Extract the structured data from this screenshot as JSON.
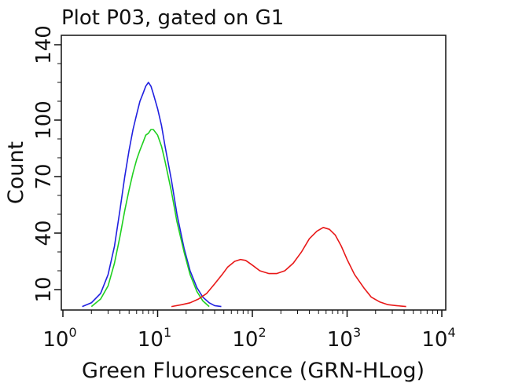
{
  "chart_data": {
    "type": "line",
    "title": "Plot P03, gated on G1",
    "xlabel": "Green Fluorescence (GRN-HLog)",
    "ylabel": "Count",
    "xscale": "log",
    "xlim": [
      1,
      10000
    ],
    "ylim": [
      0,
      145
    ],
    "grid": false,
    "x_ticks": [
      {
        "base": "10",
        "exp": "0",
        "value": 1
      },
      {
        "base": "10",
        "exp": "1",
        "value": 10
      },
      {
        "base": "10",
        "exp": "2",
        "value": 100
      },
      {
        "base": "10",
        "exp": "3",
        "value": 1000
      },
      {
        "base": "10",
        "exp": "4",
        "value": 10000
      }
    ],
    "y_ticks": [
      {
        "label": "10",
        "value": 10
      },
      {
        "label": "40",
        "value": 40
      },
      {
        "label": "70",
        "value": 70
      },
      {
        "label": "100",
        "value": 100
      },
      {
        "label": "140",
        "value": 140
      }
    ],
    "series": [
      {
        "color": "#2020e0",
        "x": [
          1.6,
          2.0,
          2.5,
          3.0,
          3.5,
          4.0,
          4.5,
          5.0,
          5.5,
          6.0,
          6.5,
          7.0,
          7.5,
          8.0,
          8.5,
          9.0,
          10,
          11,
          12,
          14,
          16,
          19,
          22,
          26,
          30,
          35,
          40,
          47
        ],
        "y": [
          1,
          3,
          8,
          18,
          33,
          52,
          70,
          84,
          95,
          103,
          110,
          114,
          118,
          120,
          118,
          114,
          106,
          97,
          86,
          68,
          50,
          32,
          20,
          11,
          6,
          3,
          1.5,
          1
        ]
      },
      {
        "color": "#20d020",
        "x": [
          2.0,
          2.5,
          3.0,
          3.5,
          4.0,
          4.5,
          5.0,
          5.5,
          6.0,
          6.5,
          7.0,
          7.5,
          8.0,
          8.5,
          9.0,
          10,
          11,
          12,
          14,
          16,
          19,
          22,
          26,
          30,
          35
        ],
        "y": [
          1,
          5,
          12,
          24,
          38,
          52,
          63,
          72,
          79,
          84,
          88,
          92,
          93,
          95,
          95,
          92,
          86,
          78,
          62,
          46,
          30,
          18,
          9,
          4,
          1
        ]
      },
      {
        "color": "#e81818",
        "x": [
          14,
          18,
          22,
          27,
          33,
          40,
          48,
          55,
          65,
          75,
          85,
          100,
          120,
          150,
          180,
          220,
          270,
          330,
          400,
          480,
          560,
          650,
          750,
          870,
          1000,
          1200,
          1500,
          1800,
          2200,
          2700,
          3300,
          4200
        ],
        "y": [
          1,
          2,
          3,
          5,
          8,
          13,
          18,
          22,
          25,
          26,
          25.5,
          23,
          20,
          18.5,
          18.5,
          20,
          24,
          30,
          37,
          41,
          43,
          42,
          39,
          33,
          26,
          18,
          11,
          6,
          3.5,
          2,
          1.5,
          1
        ]
      }
    ]
  }
}
